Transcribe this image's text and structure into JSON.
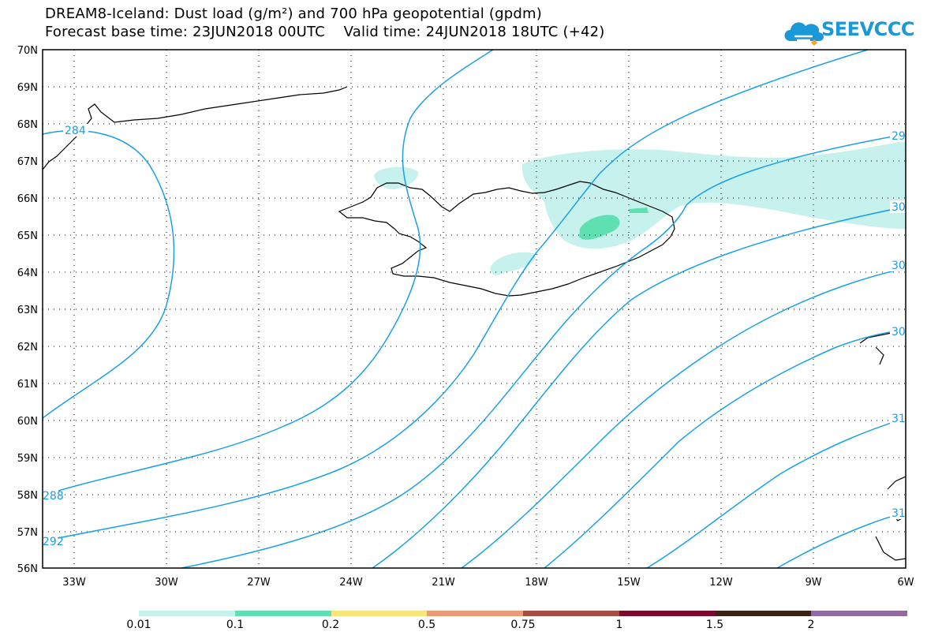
{
  "title": {
    "line1": "DREAM8-Iceland: Dust load (g/m²) and 700 hPa geopotential (gpdm)",
    "line2": "Forecast base time: 23JUN2018 00UTC    Valid time: 24JUN2018 18UTC (+42)"
  },
  "logo": {
    "text": "SEEVCCC",
    "icon": "cloud-icon",
    "color": "#1a98d8"
  },
  "map": {
    "lat_labels": [
      "70N",
      "69N",
      "68N",
      "67N",
      "66N",
      "65N",
      "64N",
      "63N",
      "62N",
      "61N",
      "60N",
      "59N",
      "58N",
      "57N",
      "56N"
    ],
    "lon_labels": [
      "33W",
      "30W",
      "27W",
      "24W",
      "21W",
      "18W",
      "15W",
      "12W",
      "9W",
      "6W"
    ],
    "contour_labels": [
      "284",
      "288",
      "292",
      "29",
      "30",
      "30",
      "30",
      "31",
      "31"
    ],
    "contour_color": "#1aa0e6",
    "coastline_color": "#000000"
  },
  "legend": {
    "labels": [
      "0.01",
      "0.1",
      "0.2",
      "0.5",
      "0.75",
      "1",
      "1.5",
      "2"
    ],
    "colors": [
      "#c6f1ec",
      "#5ee0b2",
      "#f8e67c",
      "#ea9a74",
      "#a54f44",
      "#7c0a2c",
      "#3a2414",
      "#916aa2"
    ]
  }
}
